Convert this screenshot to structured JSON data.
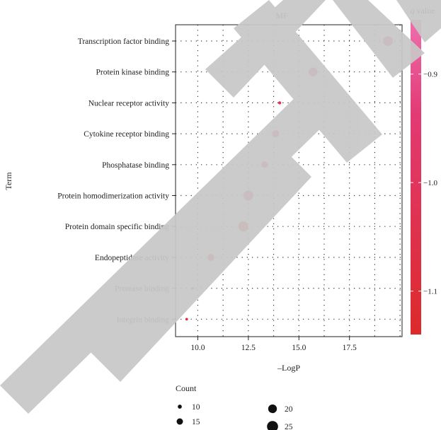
{
  "chart_data": {
    "type": "scatter",
    "title": "MF",
    "xlabel": "–LogP",
    "ylabel": "Term",
    "xlim": [
      8.9,
      20.1
    ],
    "x_ticks": [
      {
        "value": 10.0,
        "label": "10.0"
      },
      {
        "value": 12.5,
        "label": "12.5"
      },
      {
        "value": 15.0,
        "label": "15.0"
      },
      {
        "value": 17.5,
        "label": "17.5"
      }
    ],
    "grid": true,
    "grid_style": "dotted",
    "points": [
      {
        "term": "Transcription factor binding",
        "x": 19.4,
        "count": 22,
        "q": 0.9
      },
      {
        "term": "Protein kinase binding",
        "x": 15.7,
        "count": 20,
        "q": 0.93
      },
      {
        "term": "Nuclear receptor activity",
        "x": 14.05,
        "count": 8,
        "q": 0.96
      },
      {
        "term": "Cytokine receptor binding",
        "x": 13.85,
        "count": 17,
        "q": 0.98
      },
      {
        "term": "Phosphatase binding",
        "x": 13.3,
        "count": 15,
        "q": 1.0
      },
      {
        "term": "Protein homodimerization activity",
        "x": 12.5,
        "count": 23,
        "q": 1.02
      },
      {
        "term": "Protein domain specific binding",
        "x": 12.25,
        "count": 23,
        "q": 1.04
      },
      {
        "term": "Endopeptidase activity",
        "x": 10.65,
        "count": 16,
        "q": 1.06
      },
      {
        "term": "Protease binding",
        "x": 9.75,
        "count": 7,
        "q": 1.08
      },
      {
        "term": "Integrin binding",
        "x": 9.45,
        "count": 7,
        "q": 1.1
      }
    ],
    "color_legend": {
      "title_italic": "q",
      "title_rest": " value",
      "range": [
        0.85,
        1.14
      ],
      "low_color": "#e23a74",
      "high_color": "#dc2a2a",
      "top_color": "#ee6fae",
      "ticks": [
        {
          "value": 0.9,
          "label": "−0.9"
        },
        {
          "value": 1.0,
          "label": "−1.0"
        },
        {
          "value": 1.1,
          "label": "−1.1"
        }
      ]
    },
    "size_legend": {
      "title": "Count",
      "items": [
        {
          "count": 10,
          "label": "10"
        },
        {
          "count": 15,
          "label": "15"
        },
        {
          "count": 20,
          "label": "20"
        },
        {
          "count": 25,
          "label": "25"
        }
      ]
    },
    "colors": {
      "point_default": "#e0304d",
      "axis": "#222222",
      "grid": "#333333",
      "watermark": "#c8c8c8"
    }
  }
}
